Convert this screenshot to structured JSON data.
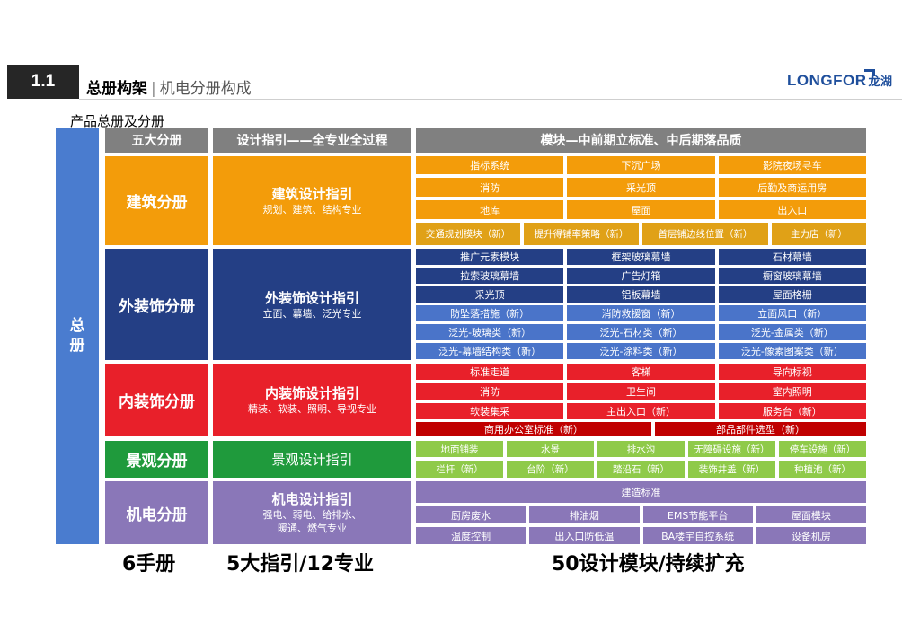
{
  "header": {
    "section_no": "1.1",
    "title_bold": "总册构架",
    "separator": "|",
    "title_rest": "机电分册构成",
    "logo_text": "LONGFOR",
    "logo_cn": "龙湖"
  },
  "subtitle": "产品总册及分册",
  "side_label": [
    "总",
    "册"
  ],
  "column_headers": {
    "books": "五大分册",
    "guides": "设计指引——全专业全过程",
    "modules": "模块—中前期立标准、中后期落品质"
  },
  "colors": {
    "header_gray": "#808080",
    "side_blue": "#4a7ccf",
    "architecture": "#f39c0a",
    "architecture_row4": "#e0a117",
    "facade": "#243f85",
    "facade_light": "#4a74c9",
    "interior": "#e8202a",
    "interior_dark": "#c00000",
    "landscape": "#1f9a3c",
    "landscape_light": "#8fca49",
    "mep": "#8a77b8"
  },
  "books": [
    {
      "name": "建筑分册",
      "guide_title": "建筑设计指引",
      "guide_sub": "规划、建筑、结构专业"
    },
    {
      "name": "外装饰分册",
      "guide_title": "外装饰设计指引",
      "guide_sub": "立面、幕墙、泛光专业"
    },
    {
      "name": "内装饰分册",
      "guide_title": "内装饰设计指引",
      "guide_sub": "精装、软装、照明、导视专业"
    },
    {
      "name": "景观分册",
      "guide_title": "景观设计指引",
      "guide_sub": ""
    },
    {
      "name": "机电分册",
      "guide_title": "机电设计指引",
      "guide_sub": "强电、弱电、给排水、",
      "guide_sub2": "暖通、燃气专业"
    }
  ],
  "modules": {
    "architecture": [
      "指标系统",
      "下沉广场",
      "影院夜场寻车",
      "消防",
      "采光顶",
      "后勤及商运用房",
      "地库",
      "屋面",
      "出入口",
      "交通规划模块（新）",
      "提升得铺率策略（新）",
      "首层铺边线位置（新）",
      "主力店（新）"
    ],
    "facade": [
      "推广元素模块",
      "框架玻璃幕墙",
      "石材幕墙",
      "拉索玻璃幕墙",
      "广告灯箱",
      "橱窗玻璃幕墙",
      "采光顶",
      "铝板幕墙",
      "屋面格栅",
      "防坠落措施（新）",
      "消防救援窗（新）",
      "立面风口（新）",
      "泛光-玻璃类（新）",
      "泛光-石材类（新）",
      "泛光-金属类（新）",
      "泛光-幕墙结构类（新）",
      "泛光-涂料类（新）",
      "泛光-像素图案类（新）"
    ],
    "interior": [
      "标准走道",
      "客梯",
      "导向标视",
      "消防",
      "卫生间",
      "室内照明",
      "软装集采",
      "主出入口（新）",
      "服务台（新）",
      "商用办公室标准（新）",
      "部品部件选型（新）"
    ],
    "landscape": [
      "地面铺装",
      "水景",
      "排水沟",
      "无障碍设施（新）",
      "停车设施（新）",
      "栏杆（新）",
      "台阶（新）",
      "踏沿石（新）",
      "装饰井盖（新）",
      "种植池（新）"
    ],
    "mep": [
      "建造标准",
      "厨房废水",
      "排油烟",
      "EMS节能平台",
      "屋面模块",
      "温度控制",
      "出入口防低温",
      "BA楼宇自控系统",
      "设备机房"
    ]
  },
  "bottom_labels": [
    "6手册",
    "5大指引/12专业",
    "50设计模块/持续扩充"
  ]
}
